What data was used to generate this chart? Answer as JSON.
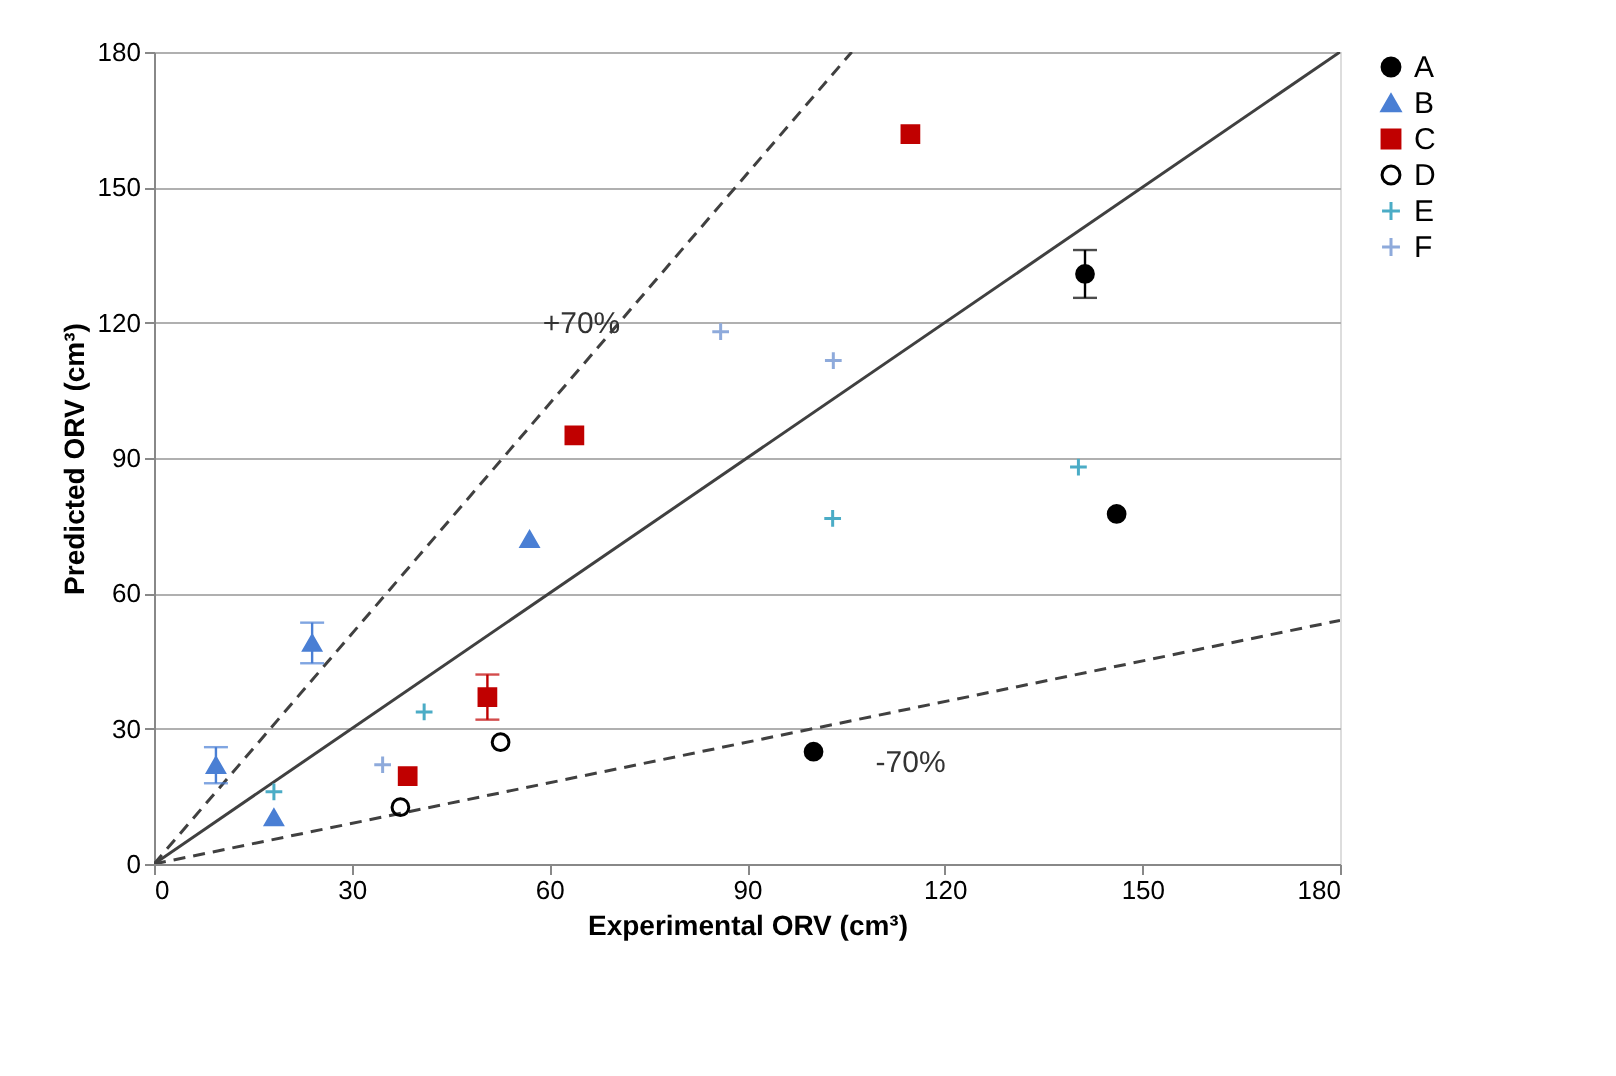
{
  "chart_data": {
    "type": "scatter",
    "xlabel": "Experimental ORV (cm³)",
    "ylabel": "Predicted ORV (cm³)",
    "xlim": [
      0,
      180
    ],
    "ylim": [
      0,
      180
    ],
    "xticks": [
      0,
      30,
      60,
      90,
      120,
      150,
      180
    ],
    "yticks": [
      0,
      30,
      60,
      90,
      120,
      150,
      180
    ],
    "grid": "y",
    "legend": "right",
    "series": [
      {
        "name": "A",
        "color": "#000000",
        "marker": "circle",
        "x": [
          141.3,
          146.1,
          100.1
        ],
        "values": [
          130.8,
          77.6,
          24.9
        ],
        "errors": [
          5.3,
          null,
          null
        ]
      },
      {
        "name": "B",
        "color": "#4a7fd4",
        "marker": "triangle",
        "x": [
          9.4,
          18.2,
          24,
          57
        ],
        "values": [
          21.9,
          10.3,
          49,
          72
        ],
        "errors": [
          4,
          null,
          4.5,
          null
        ]
      },
      {
        "name": "C",
        "color": "#c00000",
        "marker": "square",
        "x": [
          114.8,
          63.8,
          50.6,
          38.5
        ],
        "values": [
          161.8,
          95,
          37,
          19.5
        ],
        "errors": [
          null,
          null,
          5,
          null
        ]
      },
      {
        "name": "D",
        "color": "#000000",
        "marker": "circle",
        "x": [
          52.6,
          37.4
        ],
        "values": [
          27,
          12.6
        ]
      },
      {
        "name": "E",
        "color": "#4bacc6",
        "marker": "cross",
        "x": [
          18.2,
          41,
          103,
          140.3
        ],
        "values": [
          16,
          33.7,
          76.6,
          88
        ]
      },
      {
        "name": "F",
        "color": "#8eaadb",
        "marker": "cross",
        "x": [
          34.7,
          86,
          103.1
        ],
        "values": [
          22,
          118,
          111.6
        ]
      },
      {
        "type": "line",
        "color": "#404040",
        "line_style": "solid",
        "x": [
          0,
          180
        ],
        "values": [
          0,
          180
        ]
      },
      {
        "type": "line",
        "color": "#404040",
        "line_style": "dashed",
        "x": [
          0,
          105.9
        ],
        "values": [
          0,
          180
        ]
      },
      {
        "type": "line",
        "color": "#404040",
        "line_style": "dashed",
        "x": [
          0,
          180
        ],
        "values": [
          0,
          54
        ]
      }
    ],
    "annotations": [
      "+70%",
      "-70%"
    ]
  }
}
